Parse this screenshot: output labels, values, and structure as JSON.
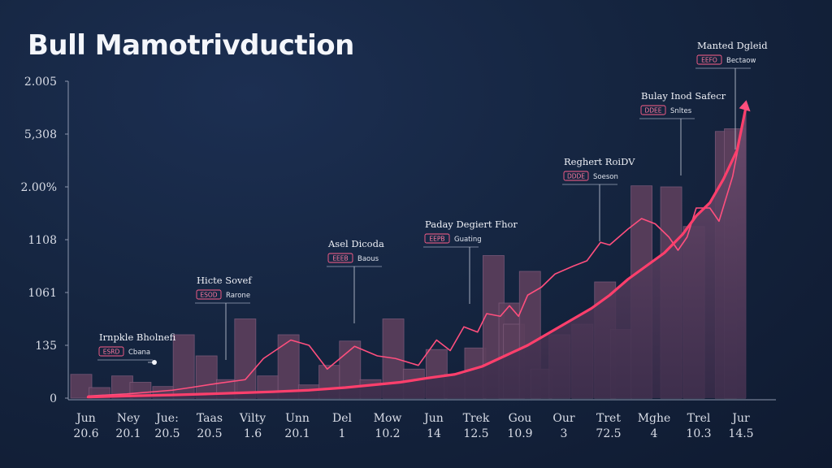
{
  "title": "Bull Mamotrivduction",
  "chart_data": {
    "type": "bar",
    "title": "Bull Mamotrivduction",
    "y_tick_labels": [
      "0",
      "135",
      "1061",
      "1108",
      "2.00%",
      "5,308",
      "2.005"
    ],
    "x_ticks": [
      {
        "month": "Jun",
        "day": "20.6"
      },
      {
        "month": "Ney",
        "day": "20.1"
      },
      {
        "month": "Jue:",
        "day": "20.5"
      },
      {
        "month": "Taas",
        "day": "20.5"
      },
      {
        "month": "Vilty",
        "day": "1.6"
      },
      {
        "month": "Unn",
        "day": "20.1"
      },
      {
        "month": "Del",
        "day": "1"
      },
      {
        "month": "Mow",
        "day": "10.2"
      },
      {
        "month": "Jun",
        "day": "14"
      },
      {
        "month": "Trek",
        "day": "12.5"
      },
      {
        "month": "Gou",
        "day": "10.9"
      },
      {
        "month": "Our",
        "day": "3"
      },
      {
        "month": "Tret",
        "day": "72.5"
      },
      {
        "month": "Mghe",
        "day": "4"
      },
      {
        "month": "Trel",
        "day": "10.3"
      },
      {
        "month": "Jur",
        "day": "14.5"
      }
    ],
    "ylim": [
      0,
      6
    ],
    "bars": [
      {
        "x": 0.0,
        "value": 0.45
      },
      {
        "x": 0.4,
        "value": 0.2
      },
      {
        "x": 0.9,
        "value": 0.42
      },
      {
        "x": 1.3,
        "value": 0.3
      },
      {
        "x": 1.8,
        "value": 0.22
      },
      {
        "x": 2.25,
        "value": 1.2
      },
      {
        "x": 2.75,
        "value": 0.8
      },
      {
        "x": 3.2,
        "value": 0.35
      },
      {
        "x": 3.6,
        "value": 1.5
      },
      {
        "x": 4.1,
        "value": 0.42
      },
      {
        "x": 4.55,
        "value": 1.2
      },
      {
        "x": 5.0,
        "value": 0.25
      },
      {
        "x": 5.45,
        "value": 0.62
      },
      {
        "x": 5.9,
        "value": 1.08
      },
      {
        "x": 6.35,
        "value": 0.35
      },
      {
        "x": 6.85,
        "value": 1.5
      },
      {
        "x": 7.3,
        "value": 0.55
      },
      {
        "x": 7.8,
        "value": 0.92
      },
      {
        "x": 8.2,
        "value": 0.45
      },
      {
        "x": 8.65,
        "value": 0.95
      },
      {
        "x": 9.05,
        "value": 2.7
      },
      {
        "x": 9.4,
        "value": 1.8
      },
      {
        "x": 9.5,
        "value": 1.4
      },
      {
        "x": 9.85,
        "value": 2.4
      },
      {
        "x": 10.1,
        "value": 0.55
      },
      {
        "x": 10.5,
        "value": 1.2
      },
      {
        "x": 11.0,
        "value": 1.4
      },
      {
        "x": 11.5,
        "value": 2.2
      },
      {
        "x": 11.85,
        "value": 1.3
      },
      {
        "x": 12.3,
        "value": 4.02
      },
      {
        "x": 12.95,
        "value": 4.0
      },
      {
        "x": 13.45,
        "value": 3.25
      },
      {
        "x": 14.15,
        "value": 5.05
      },
      {
        "x": 14.35,
        "value": 5.1
      }
    ],
    "series": [
      {
        "x": [
          0.15,
          1.0,
          2.0,
          2.4,
          3.0,
          3.6,
          4.0,
          4.6,
          5.0,
          5.4,
          6.0,
          6.5,
          6.9,
          7.4,
          7.8,
          8.1,
          8.4,
          8.7,
          8.9,
          9.2,
          9.4,
          9.6,
          9.8,
          10.1,
          10.4,
          10.8,
          11.1,
          11.4,
          11.6,
          11.8,
          12.0,
          12.3,
          12.6,
          12.9,
          13.1,
          13.3,
          13.5,
          13.8,
          14.0,
          14.3,
          14.6
        ],
        "y": [
          0.04,
          0.08,
          0.15,
          0.2,
          0.28,
          0.35,
          0.75,
          1.1,
          1.0,
          0.55,
          0.98,
          0.8,
          0.75,
          0.62,
          1.1,
          0.9,
          1.35,
          1.25,
          1.6,
          1.55,
          1.75,
          1.55,
          1.95,
          2.1,
          2.35,
          2.5,
          2.6,
          2.95,
          2.9,
          3.05,
          3.2,
          3.4,
          3.3,
          3.05,
          2.8,
          3.05,
          3.6,
          3.6,
          3.35,
          4.2,
          5.55
        ]
      },
      {
        "x": [
          0.15,
          1.0,
          2.0,
          2.8,
          3.5,
          4.2,
          5.0,
          5.8,
          6.4,
          7.0,
          7.6,
          8.2,
          8.8,
          9.3,
          9.8,
          10.3,
          10.8,
          11.2,
          11.6,
          12.0,
          12.4,
          12.8,
          13.2,
          13.5,
          13.8,
          14.1,
          14.4,
          14.6
        ],
        "y": [
          0.02,
          0.04,
          0.06,
          0.08,
          0.1,
          0.12,
          0.15,
          0.2,
          0.25,
          0.3,
          0.38,
          0.45,
          0.6,
          0.8,
          1.0,
          1.25,
          1.5,
          1.7,
          1.95,
          2.25,
          2.5,
          2.75,
          3.1,
          3.45,
          3.7,
          4.15,
          4.7,
          5.55
        ]
      }
    ],
    "annotations": [
      {
        "title": "Irnpkle Bholnefi",
        "sub": "Cbana",
        "chip": "ESRD"
      },
      {
        "title": "Hicte Sovef",
        "sub": "Rarone",
        "chip": "ESOD"
      },
      {
        "title": "Asel Dicoda",
        "sub": "Baous",
        "chip": "EEEB"
      },
      {
        "title": "Paday Degiert Fhor",
        "sub": "Guating",
        "chip": "EEPB"
      },
      {
        "title": "Reghert RoiDV",
        "sub": "Soeson",
        "chip": "DDDE"
      },
      {
        "title": "Bulay Inod Safecr",
        "sub": "Snltes",
        "chip": "DDEE"
      },
      {
        "title": "Manted Dgleid",
        "sub": "Bectaow",
        "chip": "EEFO"
      }
    ]
  }
}
